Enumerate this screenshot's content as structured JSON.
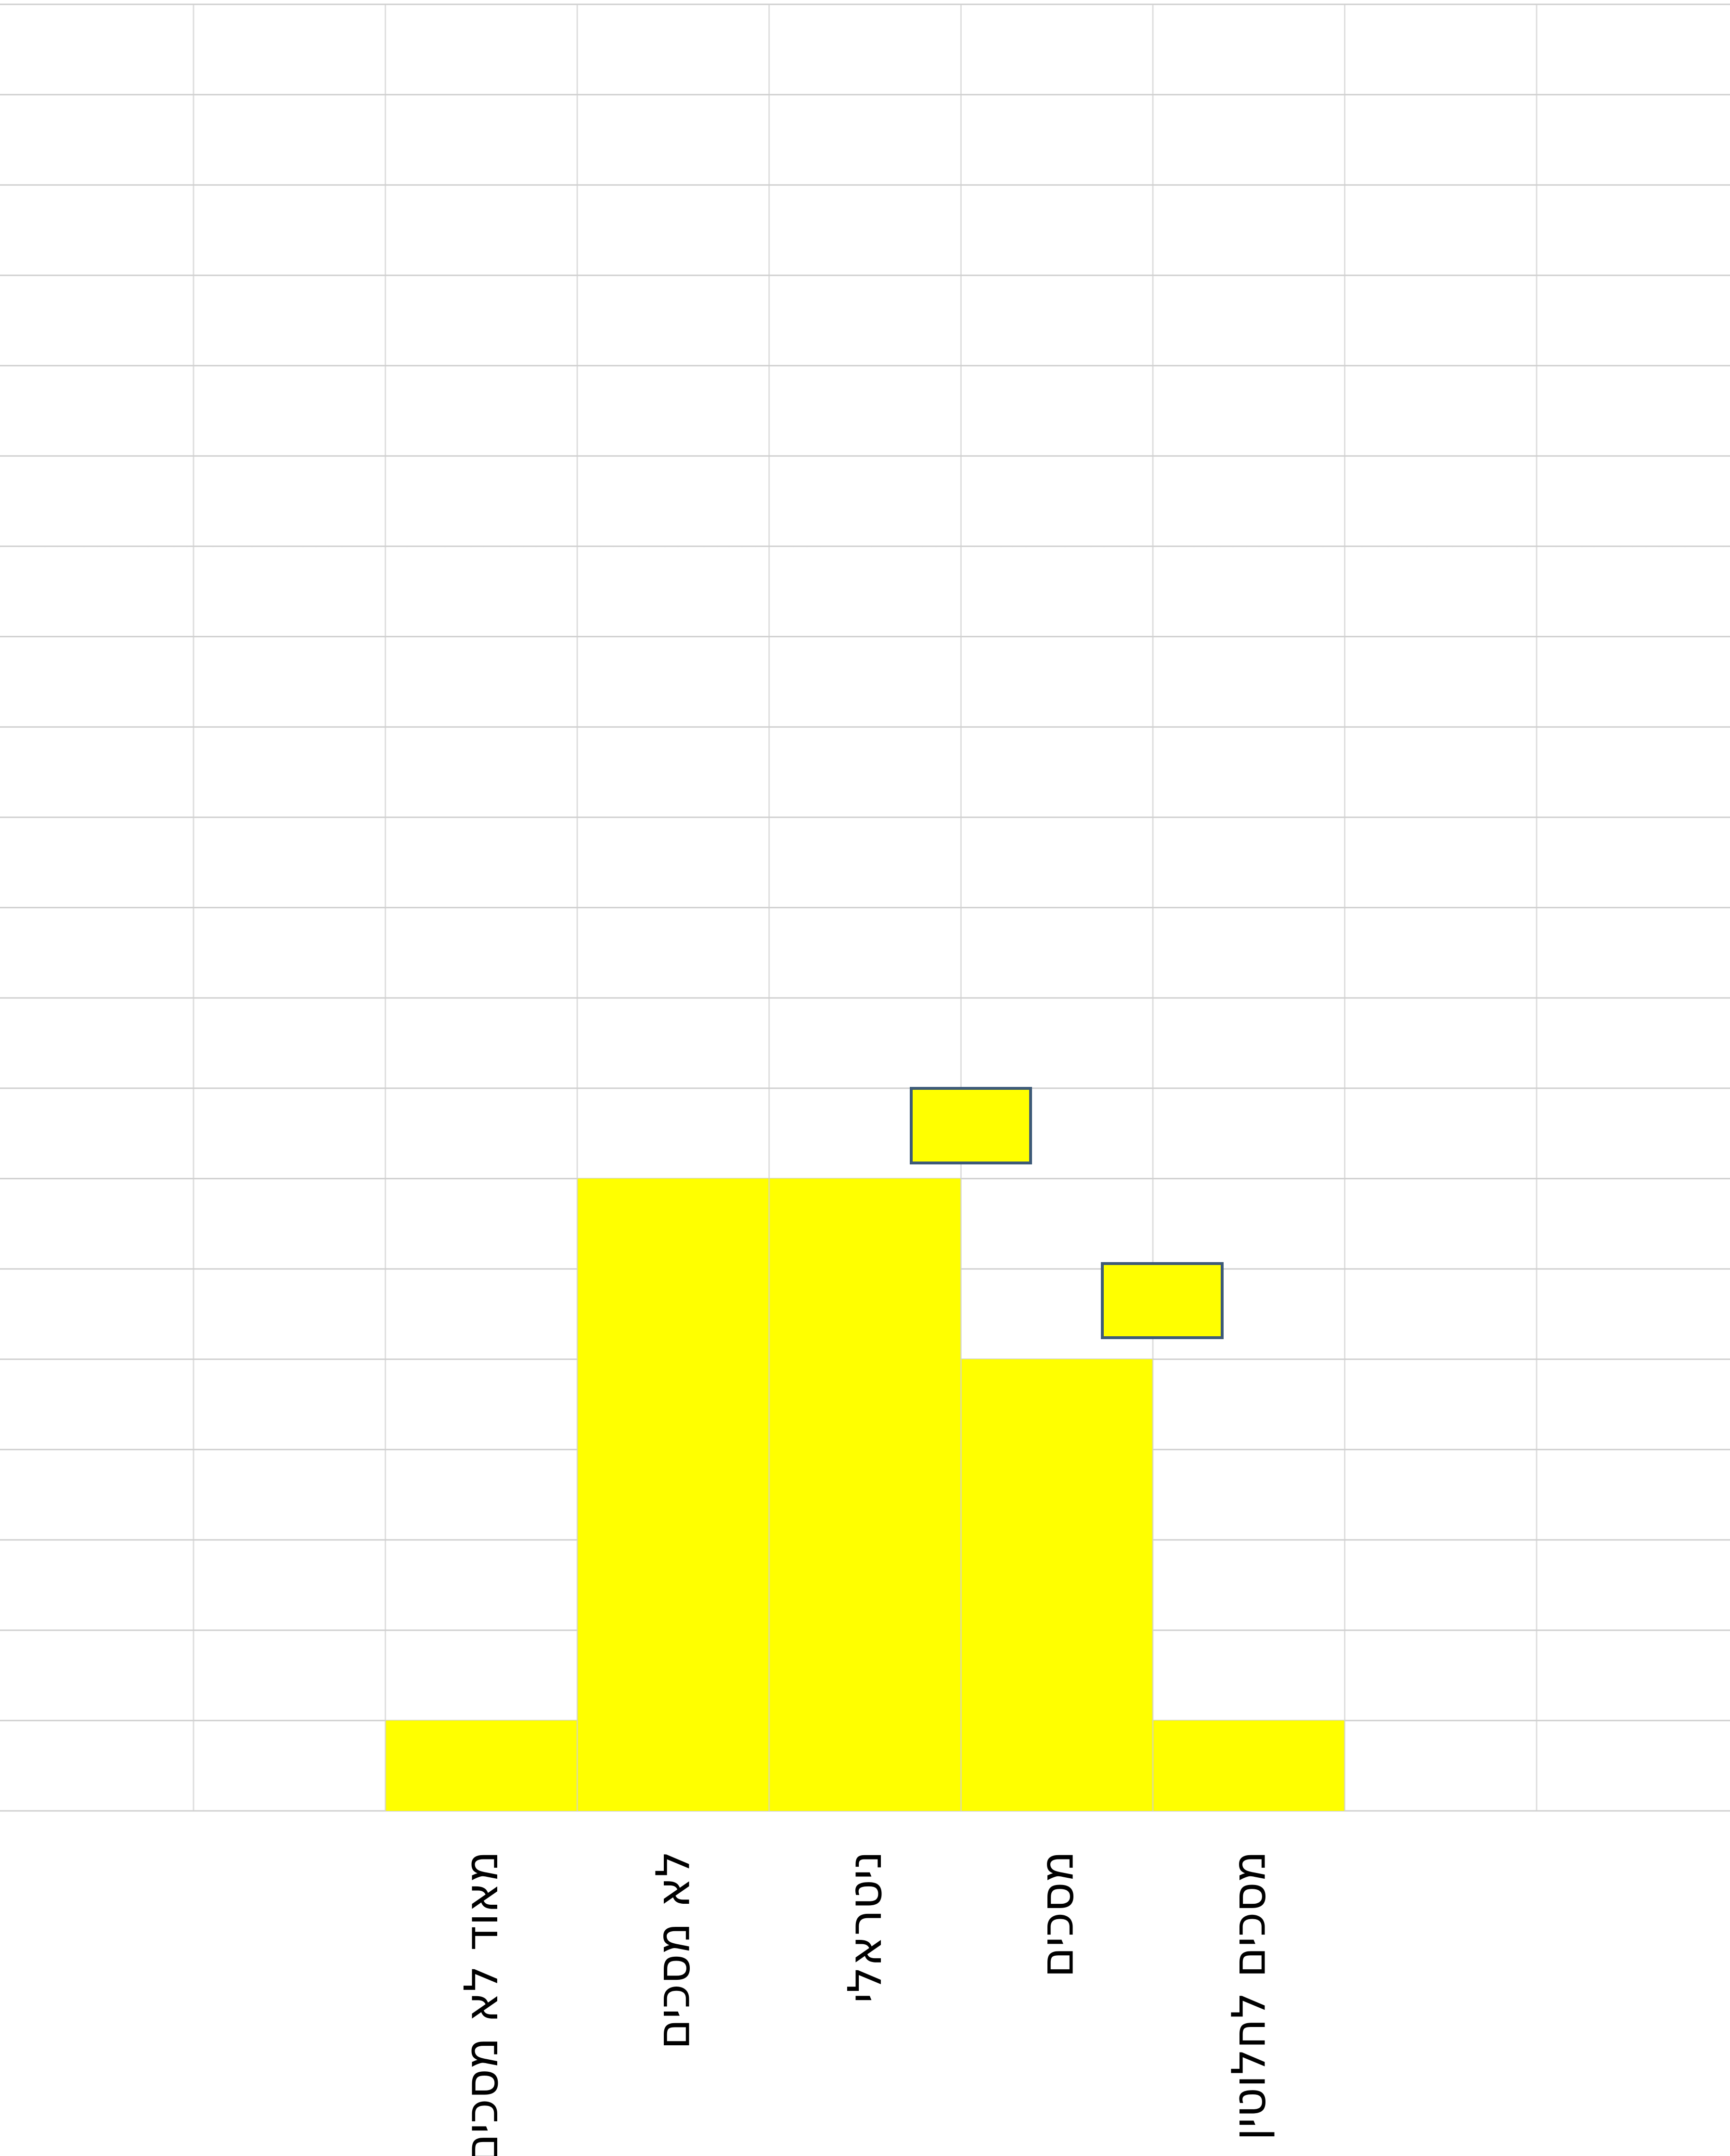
{
  "chart_data": {
    "type": "bar",
    "categories": [
      "מאוד לא מסכים",
      "לא מסכים",
      "ניטראלי",
      "מסכים",
      "מסכים לחלוטין"
    ],
    "values": [
      1,
      7,
      7,
      5,
      1
    ],
    "color": "#ffff00",
    "ylim": [
      0,
      20
    ],
    "yticks": [
      0,
      1,
      2,
      3,
      4,
      5,
      6,
      7,
      8,
      9,
      10,
      11,
      12,
      13,
      14,
      15,
      16,
      17,
      18,
      19,
      20
    ],
    "grid": true
  }
}
